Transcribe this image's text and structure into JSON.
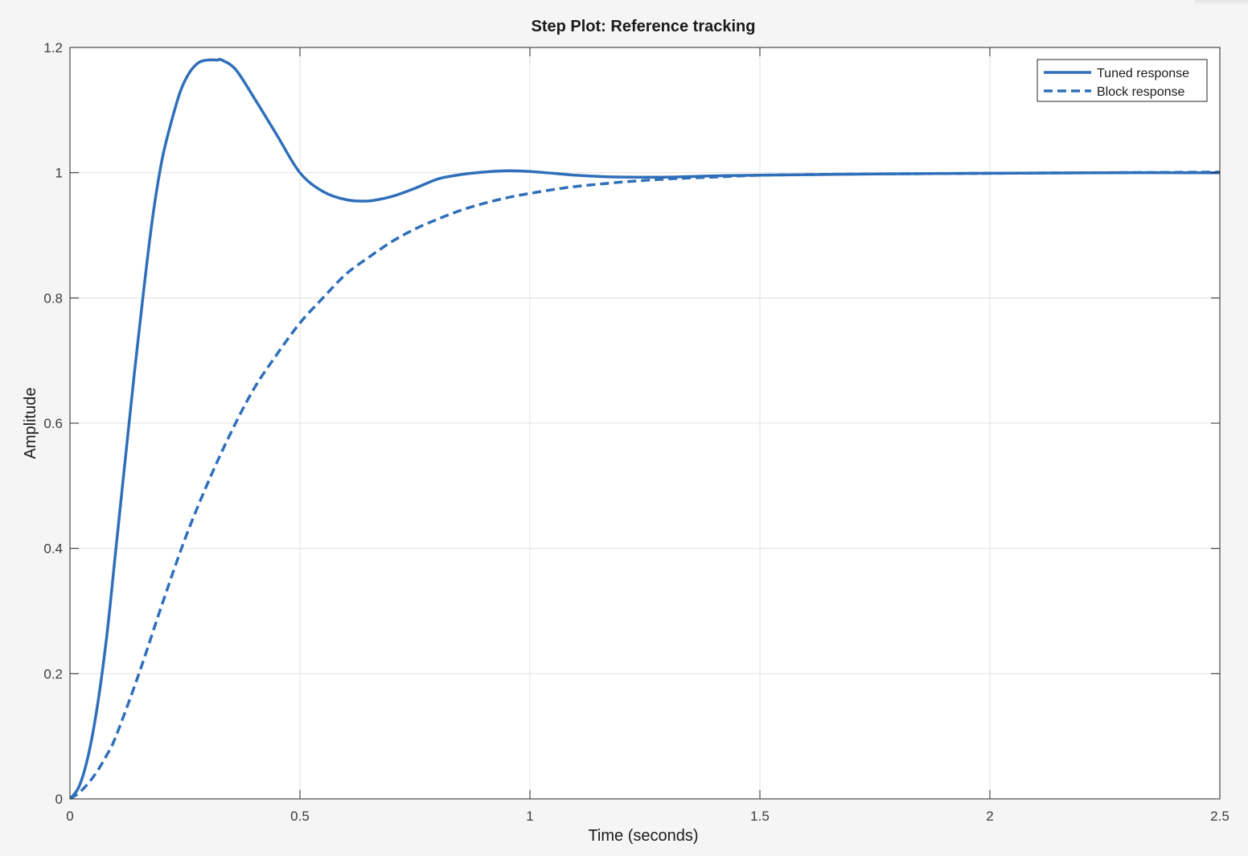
{
  "chart_data": {
    "type": "line",
    "title": "Step Plot: Reference tracking",
    "xlabel": "Time (seconds)",
    "ylabel": "Amplitude",
    "xlim": [
      0,
      2.5
    ],
    "ylim": [
      0,
      1.2
    ],
    "xticks": [
      0,
      0.5,
      1,
      1.5,
      2,
      2.5
    ],
    "xtick_labels": [
      "0",
      "0.5",
      "1",
      "1.5",
      "2",
      "2.5"
    ],
    "yticks": [
      0,
      0.2,
      0.4,
      0.6,
      0.8,
      1,
      1.2
    ],
    "ytick_labels": [
      "0",
      "0.2",
      "0.4",
      "0.6",
      "0.8",
      "1",
      "1.2"
    ],
    "grid": true,
    "legend_position": "top-right",
    "series": [
      {
        "name": "Tuned response",
        "line_style": "solid",
        "color": "#2f6fba",
        "x": [
          0,
          0.02,
          0.04,
          0.06,
          0.08,
          0.1,
          0.12,
          0.14,
          0.16,
          0.18,
          0.2,
          0.22,
          0.24,
          0.26,
          0.28,
          0.3,
          0.32,
          0.33,
          0.36,
          0.4,
          0.45,
          0.5,
          0.55,
          0.6,
          0.65,
          0.7,
          0.75,
          0.8,
          0.85,
          0.9,
          0.95,
          1.0,
          1.05,
          1.1,
          1.15,
          1.2,
          1.3,
          1.4,
          1.5,
          1.75,
          2.0,
          2.25,
          2.5
        ],
        "y": [
          0,
          0.02,
          0.07,
          0.15,
          0.26,
          0.4,
          0.54,
          0.68,
          0.81,
          0.93,
          1.02,
          1.08,
          1.13,
          1.16,
          1.176,
          1.18,
          1.18,
          1.18,
          1.165,
          1.12,
          1.06,
          1.0,
          0.97,
          0.957,
          0.955,
          0.962,
          0.975,
          0.99,
          0.997,
          1.001,
          1.003,
          1.002,
          0.999,
          0.996,
          0.994,
          0.993,
          0.993,
          0.995,
          0.996,
          0.998,
          0.999,
          1.0,
          1.0
        ]
      },
      {
        "name": "Block response",
        "line_style": "dashed",
        "color": "#2f6fba",
        "x": [
          0,
          0.02,
          0.04,
          0.06,
          0.08,
          0.1,
          0.15,
          0.2,
          0.25,
          0.3,
          0.35,
          0.4,
          0.45,
          0.5,
          0.55,
          0.6,
          0.65,
          0.7,
          0.75,
          0.8,
          0.85,
          0.9,
          0.95,
          1.0,
          1.05,
          1.1,
          1.2,
          1.3,
          1.4,
          1.5,
          1.6,
          1.75,
          2.0,
          2.25,
          2.5
        ],
        "y": [
          0,
          0.01,
          0.025,
          0.045,
          0.07,
          0.1,
          0.2,
          0.31,
          0.415,
          0.505,
          0.585,
          0.655,
          0.71,
          0.76,
          0.8,
          0.838,
          0.865,
          0.89,
          0.91,
          0.926,
          0.94,
          0.951,
          0.96,
          0.967,
          0.973,
          0.978,
          0.985,
          0.99,
          0.993,
          0.996,
          0.997,
          0.998,
          0.999,
          1.0,
          1.001
        ]
      }
    ]
  }
}
